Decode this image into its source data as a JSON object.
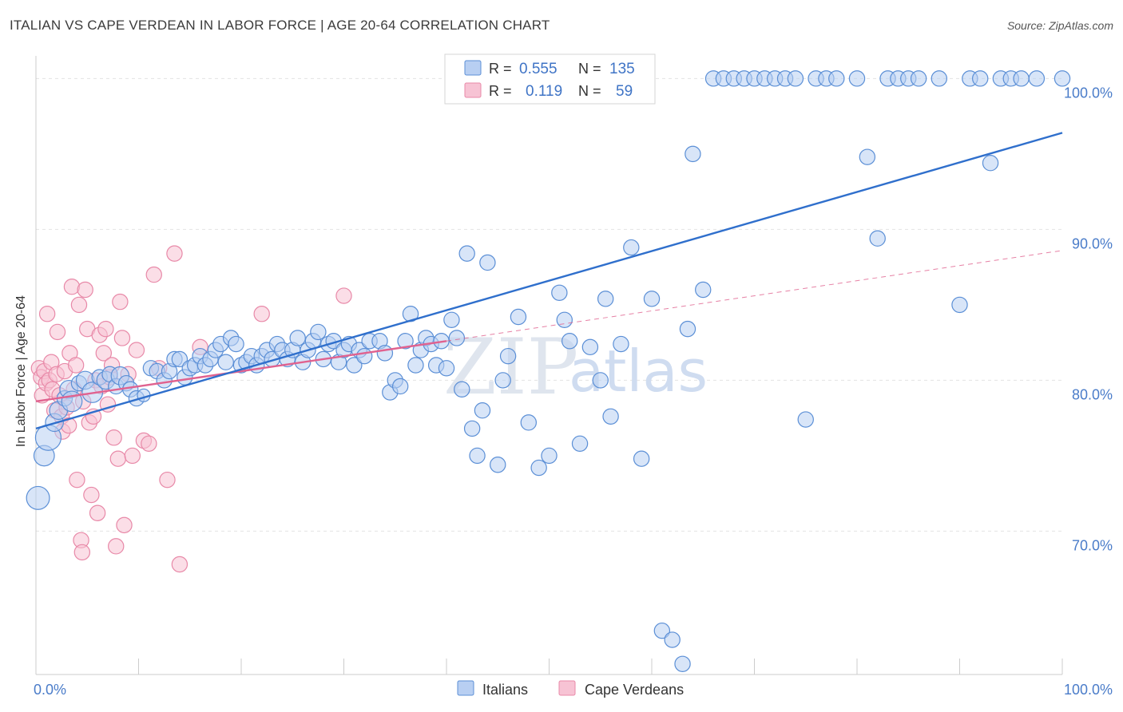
{
  "header": {
    "title": "ITALIAN VS CAPE VERDEAN IN LABOR FORCE | AGE 20-64 CORRELATION CHART",
    "source": "Source: ZipAtlas.com"
  },
  "watermark": {
    "zip": "ZIP",
    "atlas": "atlas"
  },
  "colors": {
    "blue": "#5b8fd6",
    "blue_fill": "#b8cff2",
    "blue_line": "#2f6fcc",
    "pink": "#e889a8",
    "pink_fill": "#f7c3d4",
    "pink_line": "#e0628f",
    "tick_text": "#4a7cc9"
  },
  "legend_top": {
    "rows": [
      {
        "r_label": "R =",
        "r_value": "0.555",
        "n_label": "N =",
        "n_value": "135",
        "series": "blue"
      },
      {
        "r_label": "R =",
        "r_value": "0.119",
        "n_label": "N =",
        "n_value": "59",
        "series": "pink"
      }
    ]
  },
  "legend_bottom": [
    {
      "label": "Italians",
      "series": "blue"
    },
    {
      "label": "Cape Verdeans",
      "series": "pink"
    }
  ],
  "chart_data": {
    "type": "scatter",
    "xlabel": "",
    "ylabel": "In Labor Force | Age 20-64",
    "xlim": [
      0,
      100
    ],
    "ylim": [
      60.5,
      101.5
    ],
    "x_tick_labels": [
      "0.0%",
      "100.0%"
    ],
    "y_ticks": [
      {
        "value": 70,
        "label": "70.0%"
      },
      {
        "value": 80,
        "label": "80.0%"
      },
      {
        "value": 90,
        "label": "90.0%"
      },
      {
        "value": 100,
        "label": "100.0%"
      }
    ],
    "grid": true,
    "legend_position": "bottom",
    "series": [
      {
        "name": "Italians",
        "color": "#5b8fd6",
        "trend": {
          "x": [
            0,
            100
          ],
          "y": [
            76.8,
            96.4
          ],
          "dashed": false
        },
        "points": [
          [
            0.2,
            72.2,
            18
          ],
          [
            0.8,
            75.0,
            16
          ],
          [
            1.2,
            76.2,
            20
          ],
          [
            1.8,
            77.2,
            14
          ],
          [
            2.2,
            78.0,
            14
          ],
          [
            2.8,
            78.8,
            12
          ],
          [
            3.2,
            79.4,
            14
          ],
          [
            3.5,
            78.6,
            16
          ],
          [
            4.2,
            79.8,
            12
          ],
          [
            4.8,
            80.0,
            14
          ],
          [
            5.5,
            79.2,
            16
          ],
          [
            6.2,
            80.2,
            12
          ],
          [
            6.8,
            80.0,
            14
          ],
          [
            7.2,
            80.4,
            12
          ],
          [
            7.8,
            79.6,
            12
          ],
          [
            8.2,
            80.3,
            14
          ],
          [
            8.8,
            79.8,
            12
          ],
          [
            9.2,
            79.4,
            12
          ],
          [
            9.8,
            78.8,
            12
          ],
          [
            10.5,
            79.0,
            10
          ],
          [
            11.2,
            80.8,
            12
          ],
          [
            11.8,
            80.6,
            12
          ],
          [
            12.5,
            80.0,
            12
          ],
          [
            13.0,
            80.6,
            12
          ],
          [
            13.5,
            81.4,
            12
          ],
          [
            14.0,
            81.4,
            12
          ],
          [
            14.5,
            80.2,
            12
          ],
          [
            15.0,
            80.8,
            12
          ],
          [
            15.5,
            81.0,
            12
          ],
          [
            16.0,
            81.6,
            12
          ],
          [
            16.5,
            81.0,
            12
          ],
          [
            17.0,
            81.4,
            12
          ],
          [
            17.5,
            82.0,
            12
          ],
          [
            18.0,
            82.4,
            12
          ],
          [
            18.5,
            81.2,
            12
          ],
          [
            19.0,
            82.8,
            12
          ],
          [
            19.5,
            82.4,
            12
          ],
          [
            20.0,
            81.0,
            12
          ],
          [
            20.5,
            81.2,
            12
          ],
          [
            21.0,
            81.6,
            12
          ],
          [
            21.5,
            81.0,
            12
          ],
          [
            22.0,
            81.6,
            12
          ],
          [
            22.5,
            82.0,
            12
          ],
          [
            23.0,
            81.4,
            12
          ],
          [
            23.5,
            82.4,
            12
          ],
          [
            24.0,
            82.0,
            12
          ],
          [
            24.5,
            81.4,
            12
          ],
          [
            25.0,
            82.0,
            12
          ],
          [
            25.5,
            82.8,
            12
          ],
          [
            26.0,
            81.2,
            12
          ],
          [
            26.5,
            82.0,
            12
          ],
          [
            27.0,
            82.6,
            12
          ],
          [
            27.5,
            83.2,
            12
          ],
          [
            28.0,
            81.4,
            12
          ],
          [
            28.5,
            82.4,
            12
          ],
          [
            29.0,
            82.6,
            12
          ],
          [
            29.5,
            81.2,
            12
          ],
          [
            30.0,
            82.0,
            12
          ],
          [
            30.5,
            82.4,
            12
          ],
          [
            31.0,
            81.0,
            12
          ],
          [
            31.5,
            82.0,
            12
          ],
          [
            32.0,
            81.6,
            12
          ],
          [
            32.5,
            82.6,
            12
          ],
          [
            33.5,
            82.6,
            12
          ],
          [
            34.0,
            81.8,
            12
          ],
          [
            34.5,
            79.2,
            12
          ],
          [
            35.0,
            80.0,
            12
          ],
          [
            35.5,
            79.6,
            12
          ],
          [
            36.0,
            82.6,
            12
          ],
          [
            36.5,
            84.4,
            12
          ],
          [
            37.0,
            81.0,
            12
          ],
          [
            37.5,
            82.0,
            12
          ],
          [
            38.0,
            82.8,
            12
          ],
          [
            38.5,
            82.4,
            12
          ],
          [
            39.0,
            81.0,
            12
          ],
          [
            39.5,
            82.6,
            12
          ],
          [
            40.0,
            80.8,
            12
          ],
          [
            40.5,
            84.0,
            12
          ],
          [
            41.0,
            82.8,
            12
          ],
          [
            41.5,
            79.4,
            12
          ],
          [
            42.0,
            88.4,
            12
          ],
          [
            42.5,
            76.8,
            12
          ],
          [
            43.0,
            75.0,
            12
          ],
          [
            43.5,
            78.0,
            12
          ],
          [
            44.0,
            87.8,
            12
          ],
          [
            45.0,
            74.4,
            12
          ],
          [
            45.5,
            80.0,
            12
          ],
          [
            46.0,
            81.6,
            12
          ],
          [
            47.0,
            84.2,
            12
          ],
          [
            48.0,
            77.2,
            12
          ],
          [
            49.0,
            74.2,
            12
          ],
          [
            50.0,
            75.0,
            12
          ],
          [
            51.0,
            85.8,
            12
          ],
          [
            51.5,
            84.0,
            12
          ],
          [
            52.0,
            82.6,
            12
          ],
          [
            53.0,
            75.8,
            12
          ],
          [
            54.0,
            82.2,
            12
          ],
          [
            55.0,
            80.0,
            12
          ],
          [
            55.5,
            85.4,
            12
          ],
          [
            56.0,
            77.6,
            12
          ],
          [
            57.0,
            82.4,
            12
          ],
          [
            58.0,
            88.8,
            12
          ],
          [
            59.0,
            74.8,
            12
          ],
          [
            60.0,
            85.4,
            12
          ],
          [
            61.0,
            63.4,
            12
          ],
          [
            62.0,
            62.8,
            12
          ],
          [
            63.0,
            61.2,
            12
          ],
          [
            63.5,
            83.4,
            12
          ],
          [
            64.0,
            95.0,
            12
          ],
          [
            65.0,
            86.0,
            12
          ],
          [
            66.0,
            100.0,
            12
          ],
          [
            67.0,
            100.0,
            12
          ],
          [
            68.0,
            100.0,
            12
          ],
          [
            69.0,
            100.0,
            12
          ],
          [
            70.0,
            100.0,
            12
          ],
          [
            71.0,
            100.0,
            12
          ],
          [
            72.0,
            100.0,
            12
          ],
          [
            73.0,
            100.0,
            12
          ],
          [
            74.0,
            100.0,
            12
          ],
          [
            75.0,
            77.4,
            12
          ],
          [
            76.0,
            100.0,
            12
          ],
          [
            77.0,
            100.0,
            12
          ],
          [
            78.0,
            100.0,
            12
          ],
          [
            80.0,
            100.0,
            12
          ],
          [
            81.0,
            94.8,
            12
          ],
          [
            82.0,
            89.4,
            12
          ],
          [
            83.0,
            100.0,
            12
          ],
          [
            84.0,
            100.0,
            12
          ],
          [
            85.0,
            100.0,
            12
          ],
          [
            86.0,
            100.0,
            12
          ],
          [
            88.0,
            100.0,
            12
          ],
          [
            90.0,
            85.0,
            12
          ],
          [
            91.0,
            100.0,
            12
          ],
          [
            92.0,
            100.0,
            12
          ],
          [
            93.0,
            94.4,
            12
          ],
          [
            94.0,
            100.0,
            12
          ],
          [
            95.0,
            100.0,
            12
          ],
          [
            96.0,
            100.0,
            12
          ],
          [
            97.5,
            100.0,
            12
          ],
          [
            100.0,
            100.0,
            12
          ]
        ]
      },
      {
        "name": "Cape Verdeans",
        "color": "#e889a8",
        "trend": {
          "x": [
            0,
            40
          ],
          "y": [
            78.6,
            82.6
          ],
          "dashed": false
        },
        "trend_ext": {
          "x": [
            40,
            100
          ],
          "y": [
            82.6,
            88.6
          ],
          "dashed": true
        },
        "points": [
          [
            0.3,
            80.8,
            12
          ],
          [
            0.5,
            80.2,
            12
          ],
          [
            0.6,
            79.0,
            12
          ],
          [
            0.8,
            80.6,
            12
          ],
          [
            1.0,
            79.8,
            12
          ],
          [
            1.1,
            84.4,
            12
          ],
          [
            1.3,
            80.0,
            12
          ],
          [
            1.5,
            81.2,
            12
          ],
          [
            1.6,
            79.4,
            12
          ],
          [
            1.8,
            78.0,
            12
          ],
          [
            2.0,
            80.4,
            12
          ],
          [
            2.1,
            83.2,
            12
          ],
          [
            2.3,
            79.0,
            12
          ],
          [
            2.5,
            77.6,
            12
          ],
          [
            2.6,
            76.6,
            12
          ],
          [
            2.8,
            80.6,
            12
          ],
          [
            3.0,
            78.2,
            12
          ],
          [
            3.2,
            77.0,
            12
          ],
          [
            3.3,
            81.8,
            12
          ],
          [
            3.5,
            86.2,
            12
          ],
          [
            3.7,
            79.4,
            12
          ],
          [
            3.9,
            81.0,
            12
          ],
          [
            4.0,
            73.4,
            12
          ],
          [
            4.2,
            85.0,
            12
          ],
          [
            4.4,
            69.4,
            12
          ],
          [
            4.5,
            68.6,
            12
          ],
          [
            4.6,
            78.6,
            12
          ],
          [
            4.8,
            86.0,
            12
          ],
          [
            5.0,
            83.4,
            12
          ],
          [
            5.2,
            77.2,
            12
          ],
          [
            5.4,
            72.4,
            12
          ],
          [
            5.6,
            77.6,
            12
          ],
          [
            5.8,
            80.0,
            12
          ],
          [
            6.0,
            71.2,
            12
          ],
          [
            6.2,
            83.0,
            12
          ],
          [
            6.4,
            79.6,
            12
          ],
          [
            6.6,
            81.8,
            12
          ],
          [
            6.8,
            83.4,
            12
          ],
          [
            7.0,
            78.4,
            12
          ],
          [
            7.2,
            80.2,
            12
          ],
          [
            7.4,
            81.0,
            12
          ],
          [
            7.6,
            76.2,
            12
          ],
          [
            7.8,
            69.0,
            12
          ],
          [
            8.0,
            74.8,
            12
          ],
          [
            8.2,
            85.2,
            12
          ],
          [
            8.4,
            82.8,
            12
          ],
          [
            8.6,
            70.4,
            12
          ],
          [
            9.0,
            80.4,
            12
          ],
          [
            9.4,
            75.0,
            12
          ],
          [
            9.8,
            82.0,
            12
          ],
          [
            10.5,
            76.0,
            12
          ],
          [
            11.0,
            75.8,
            12
          ],
          [
            11.5,
            87.0,
            12
          ],
          [
            12.0,
            80.8,
            12
          ],
          [
            12.8,
            73.4,
            12
          ],
          [
            13.5,
            88.4,
            12
          ],
          [
            14.0,
            67.8,
            12
          ],
          [
            16.0,
            82.2,
            12
          ],
          [
            22.0,
            84.4,
            12
          ],
          [
            30.0,
            85.6,
            12
          ]
        ]
      }
    ]
  }
}
